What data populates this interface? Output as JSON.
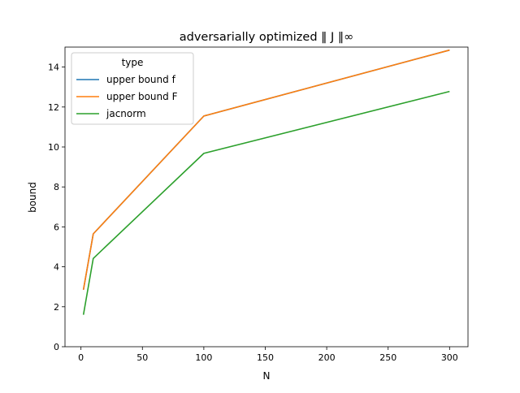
{
  "chart_data": {
    "type": "line",
    "title": "adversarially optimized ‖ J ‖∞",
    "xlabel": "N",
    "ylabel": "bound",
    "xlim": [
      -13,
      315
    ],
    "ylim": [
      0,
      15
    ],
    "xticks": [
      0,
      50,
      100,
      150,
      200,
      250,
      300
    ],
    "yticks": [
      0,
      2,
      4,
      6,
      8,
      10,
      12,
      14
    ],
    "grid": false,
    "legend": {
      "title": "type",
      "placement": "top-left"
    },
    "x": [
      2,
      10,
      100,
      300
    ],
    "series": [
      {
        "name": "upper bound f",
        "color": "#1f77b4",
        "values": [
          2.85,
          5.65,
          11.55,
          14.85
        ]
      },
      {
        "name": "upper bound F",
        "color": "#ff7f0e",
        "values": [
          2.85,
          5.65,
          11.55,
          14.85
        ]
      },
      {
        "name": "jacnorm",
        "color": "#2ca02c",
        "values": [
          1.6,
          4.42,
          9.68,
          12.78
        ]
      }
    ]
  }
}
